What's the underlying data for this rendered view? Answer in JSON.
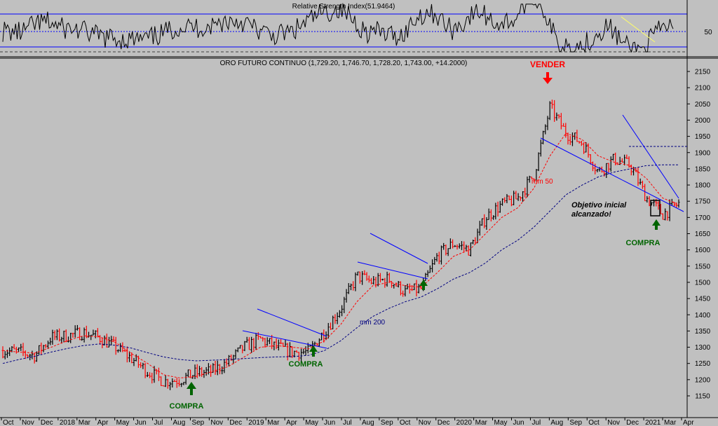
{
  "rsi": {
    "title": "Relative Strength Index(51.9464)",
    "ytick": "50",
    "levels": [
      30,
      50,
      70
    ]
  },
  "price": {
    "title": "ORO FUTURO CONTINUO (1,729.20, 1,746.70, 1,728.20, 1,743.00, +14.2000)",
    "yticks": [
      "2150",
      "2100",
      "2050",
      "2000",
      "1950",
      "1900",
      "1850",
      "1800",
      "1750",
      "1700",
      "1650",
      "1600",
      "1550",
      "1500",
      "1450",
      "1400",
      "1350",
      "1300",
      "1250",
      "1200",
      "1150"
    ]
  },
  "xticks": [
    "Oct",
    "Nov",
    "Dec",
    "2018",
    "Mar",
    "Apr",
    "May",
    "Jun",
    "Jul",
    "Aug",
    "Sep",
    "Nov",
    "Dec",
    "2019",
    "Mar",
    "Apr",
    "May",
    "Jun",
    "Jul",
    "Aug",
    "Sep",
    "Oct",
    "Nov",
    "Dec",
    "2020",
    "Mar",
    "May",
    "Jun",
    "Jul",
    "Aug",
    "Sep",
    "Oct",
    "Nov",
    "Dec",
    "2021",
    "Mar",
    "Apr"
  ],
  "labels": {
    "mm50": "mm 50",
    "mm200": "mm 200",
    "vender": "VENDER",
    "compra1": "COMPRA",
    "compra2": "COMPRA",
    "compra3": "COMPRA",
    "objetivo_line1": "Objetivo inicial",
    "objetivo_line2": "alcanzado!"
  },
  "colors": {
    "background": "#c0c0c0",
    "up_bar": "#000000",
    "down_bar": "#ff0000",
    "trendline": "#0000ff",
    "ma50": "#ff0000",
    "ma200": "#000080",
    "sell": "#ff0000",
    "buy": "#006400"
  },
  "chart_data": {
    "type": "line",
    "title": "ORO FUTURO CONTINUO (1,729.20, 1,746.70, 1,728.20, 1,743.00, +14.2000)",
    "ylim": [
      1120,
      2180
    ],
    "last": {
      "open": 1729.2,
      "high": 1746.7,
      "low": 1728.2,
      "close": 1743.0,
      "change": 14.2
    },
    "series": [
      {
        "name": "",
        "x": [
          "2017-10",
          "2017-11",
          "2017-12",
          "2018-01",
          "2018-02",
          "2018-03",
          "2018-04",
          "2018-05",
          "2018-06",
          "2018-07",
          "2018-08",
          "2018-09",
          "2018-10",
          "2018-11",
          "2018-12",
          "2019-01",
          "2019-02",
          "2019-03",
          "2019-04",
          "2019-05",
          "2019-06",
          "2019-07",
          "2019-08",
          "2019-09",
          "2019-10",
          "2019-11",
          "2019-12",
          "2020-01",
          "2020-02",
          "2020-03",
          "2020-04",
          "2020-05",
          "2020-06",
          "2020-07",
          "2020-08",
          "2020-09",
          "2020-10",
          "2020-11",
          "2020-12",
          "2021-01",
          "2021-02",
          "2021-03",
          "2021-04"
        ],
        "values": [
          1290,
          1285,
          1275,
          1330,
          1335,
          1345,
          1330,
          1300,
          1265,
          1225,
          1195,
          1200,
          1220,
          1225,
          1255,
          1300,
          1325,
          1300,
          1285,
          1285,
          1350,
          1420,
          1520,
          1500,
          1510,
          1470,
          1480,
          1580,
          1620,
          1600,
          1700,
          1740,
          1760,
          1830,
          2040,
          1960,
          1930,
          1840,
          1880,
          1860,
          1760,
          1710,
          1743
        ]
      },
      {
        "name": "mm 50",
        "values": [
          1290,
          1285,
          1282,
          1300,
          1320,
          1335,
          1332,
          1315,
          1280,
          1250,
          1215,
          1205,
          1210,
          1225,
          1240,
          1270,
          1300,
          1305,
          1300,
          1295,
          1320,
          1370,
          1440,
          1490,
          1500,
          1490,
          1485,
          1530,
          1580,
          1600,
          1650,
          1700,
          1730,
          1790,
          1890,
          1960,
          1940,
          1890,
          1870,
          1860,
          1820,
          1760,
          1740
        ]
      },
      {
        "name": "mm 200",
        "values": [
          1250,
          1262,
          1272,
          1285,
          1296,
          1305,
          1310,
          1306,
          1297,
          1283,
          1270,
          1262,
          1258,
          1260,
          1262,
          1265,
          1268,
          1270,
          1271,
          1275,
          1290,
          1320,
          1360,
          1395,
          1420,
          1440,
          1455,
          1480,
          1510,
          1530,
          1560,
          1600,
          1630,
          1670,
          1720,
          1770,
          1800,
          1825,
          1840,
          1850,
          1860,
          1862,
          1862
        ]
      }
    ],
    "rsi": {
      "name": "Relative Strength Index",
      "last": 51.9464,
      "levels": [
        30,
        50,
        70
      ]
    }
  }
}
